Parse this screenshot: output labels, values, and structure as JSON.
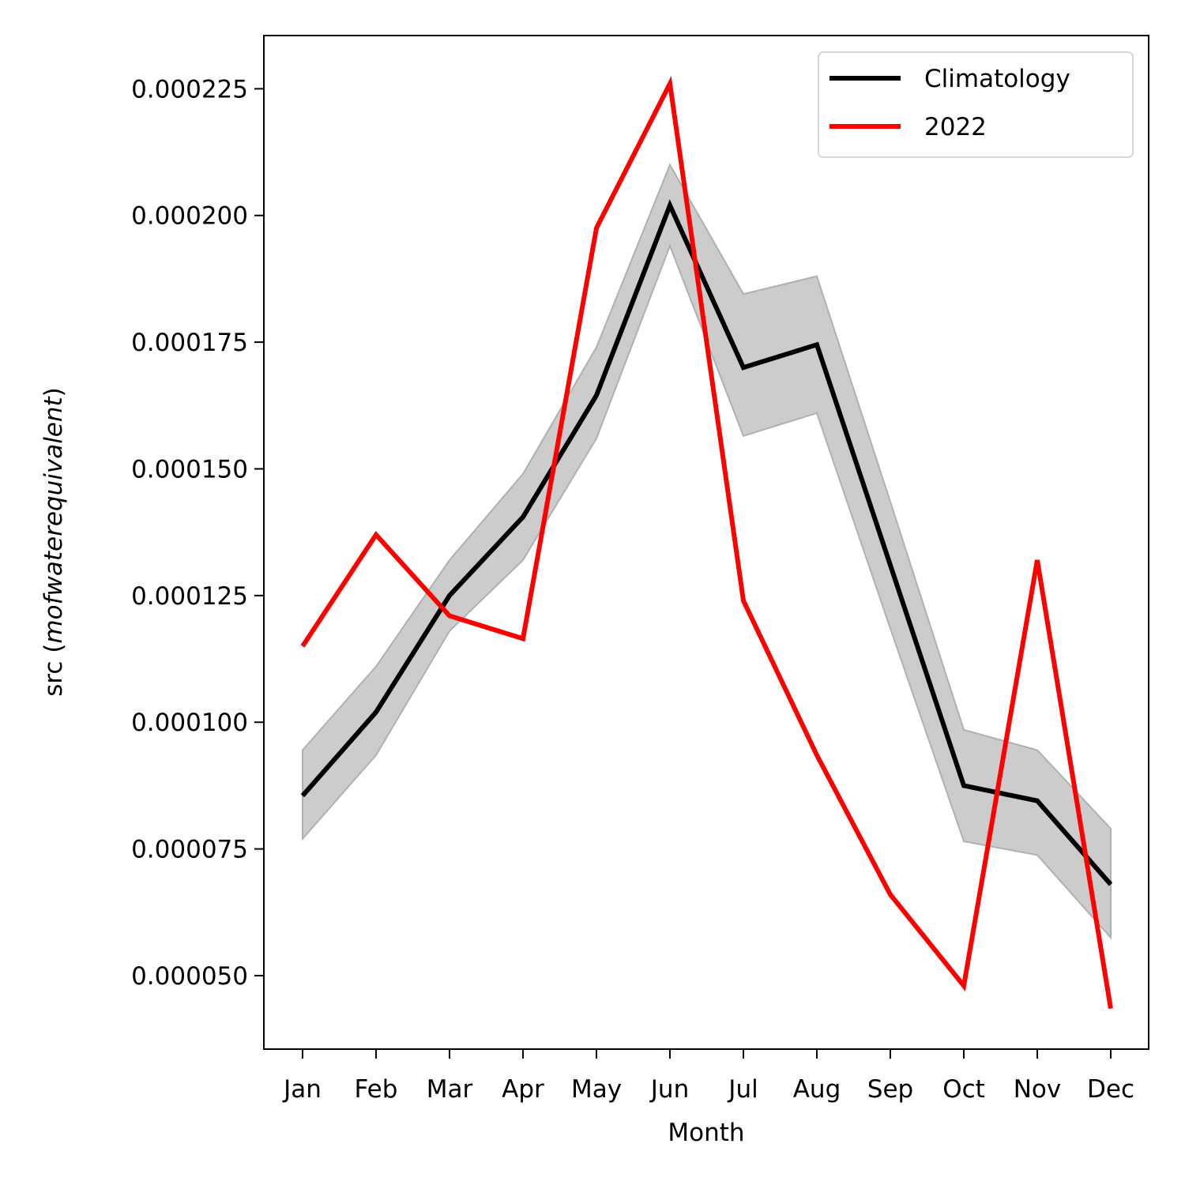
{
  "chart_data": {
    "type": "line",
    "title": "",
    "xlabel": "Month",
    "ylabel_prefix": "src (",
    "ylabel_italic": "mofwaterequivalent",
    "ylabel_suffix": ")",
    "categories": [
      "Jan",
      "Feb",
      "Mar",
      "Apr",
      "May",
      "Jun",
      "Jul",
      "Aug",
      "Sep",
      "Oct",
      "Nov",
      "Dec"
    ],
    "yticks": [
      5e-05,
      7.5e-05,
      0.0001,
      0.000125,
      0.00015,
      0.000175,
      0.0002,
      0.000225
    ],
    "ytick_labels": [
      "0.000050",
      "0.000075",
      "0.000100",
      "0.000125",
      "0.000150",
      "0.000175",
      "0.000200",
      "0.000225"
    ],
    "ylim": [
      3.55e-05,
      0.0002355
    ],
    "grid": false,
    "legend_position": "top-right",
    "band": {
      "upper": [
        9.45e-05,
        0.000111,
        0.000132,
        0.000149,
        0.000174,
        0.00021,
        0.0001845,
        0.000188,
        0.0001435,
        9.85e-05,
        9.45e-05,
        7.9e-05
      ],
      "lower": [
        7.7e-05,
        9.35e-05,
        0.000118,
        0.000132,
        0.000156,
        0.000194,
        0.0001565,
        0.000161,
        0.0001185,
        7.65e-05,
        7.38e-05,
        5.75e-05
      ],
      "color": "#cccccc",
      "edge_color": "#b0b0b0"
    },
    "series": [
      {
        "name": "Climatology",
        "color": "#000000",
        "values": [
          8.55e-05,
          0.000102,
          0.000125,
          0.0001405,
          0.0001645,
          0.000202,
          0.00017,
          0.0001745,
          0.000131,
          8.75e-05,
          8.45e-05,
          6.8e-05
        ]
      },
      {
        "name": "2022",
        "color": "#ff0000",
        "values": [
          0.000115,
          0.000137,
          0.000121,
          0.0001165,
          0.0001975,
          0.000226,
          0.000124,
          9.35e-05,
          6.6e-05,
          4.8e-05,
          0.000132,
          4.35e-05
        ]
      }
    ]
  }
}
